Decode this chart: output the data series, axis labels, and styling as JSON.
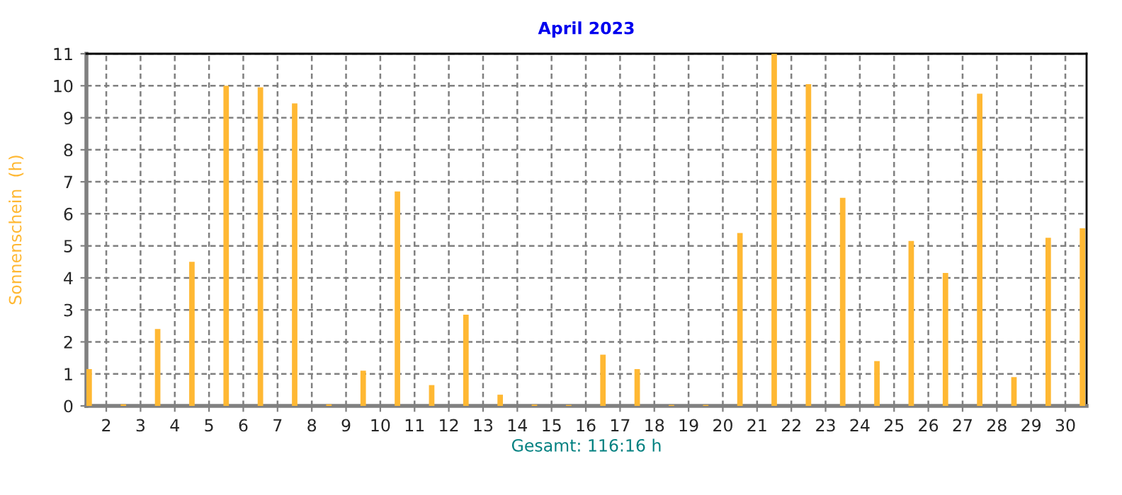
{
  "chart_data": {
    "type": "bar",
    "title": "April 2023",
    "xlabel": "Gesamt: 116:16 h",
    "ylabel": "Sonnenschein  (h)",
    "x": [
      1.5,
      2.5,
      3.5,
      4.5,
      5.5,
      6.5,
      7.5,
      8.5,
      9.5,
      10.5,
      11.5,
      12.5,
      13.5,
      14.5,
      15.5,
      16.5,
      17.5,
      18.5,
      19.5,
      20.5,
      21.5,
      22.5,
      23.5,
      24.5,
      25.5,
      26.5,
      27.5,
      28.5,
      29.5,
      30.5
    ],
    "series": [
      {
        "color": "#ffb833",
        "values": [
          1.15,
          0.05,
          2.4,
          4.5,
          10.0,
          9.95,
          9.45,
          0.05,
          1.1,
          6.7,
          0.65,
          2.85,
          0.35,
          0.04,
          0.03,
          1.6,
          1.15,
          0.03,
          0.03,
          5.4,
          11.0,
          10.05,
          6.5,
          1.4,
          5.15,
          4.15,
          9.75,
          0.9,
          5.25,
          5.55
        ]
      }
    ],
    "xlim": [
      1.42,
      30.62
    ],
    "xticks": [
      2,
      3,
      4,
      5,
      6,
      7,
      8,
      9,
      10,
      11,
      12,
      13,
      14,
      15,
      16,
      17,
      18,
      19,
      20,
      21,
      22,
      23,
      24,
      25,
      26,
      27,
      28,
      29,
      30
    ],
    "ylim": [
      0,
      11
    ],
    "yticks": [
      0,
      1,
      2,
      3,
      4,
      5,
      6,
      7,
      8,
      9,
      10,
      11
    ],
    "grid": true,
    "line_style": "dashed"
  }
}
